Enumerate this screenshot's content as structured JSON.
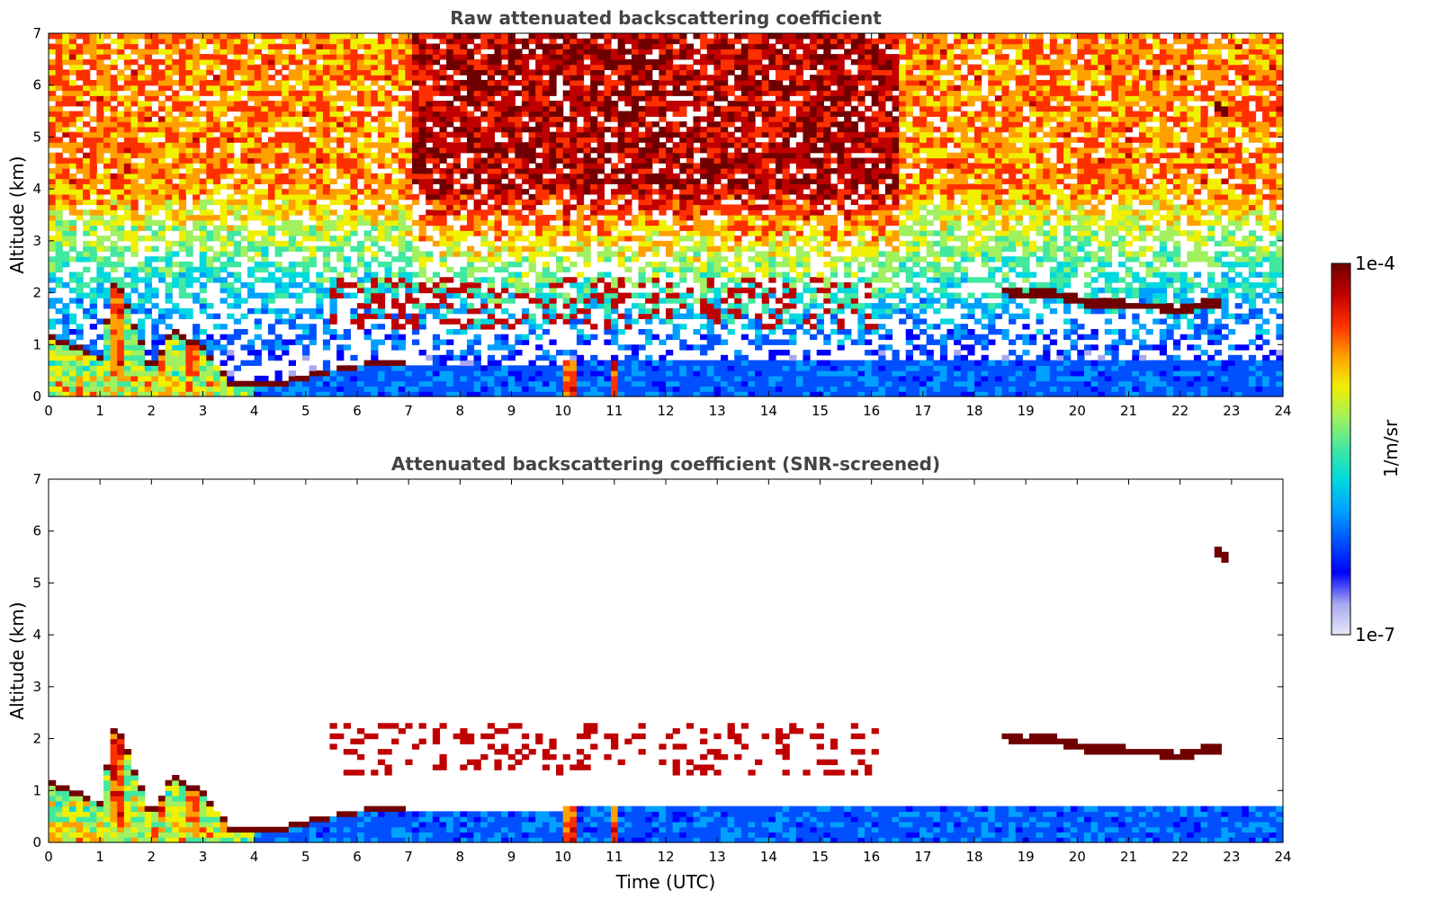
{
  "chart_data": [
    {
      "type": "heatmap",
      "title": "Raw attenuated backscattering coefficient",
      "xlabel": "",
      "ylabel": "Altitude (km)",
      "xlim": [
        0,
        24
      ],
      "ylim": [
        0,
        7
      ],
      "xticks": [
        0,
        1,
        2,
        3,
        4,
        5,
        6,
        7,
        8,
        9,
        10,
        11,
        12,
        13,
        14,
        15,
        16,
        17,
        18,
        19,
        20,
        21,
        22,
        23,
        24
      ],
      "yticks": [
        0,
        1,
        2,
        3,
        4,
        5,
        6,
        7
      ],
      "layers": {
        "background_noise": "dense speckle above ~2 km rising from blue to yellow/red with altitude",
        "boundary_layer": [
          [
            0,
            1.1
          ],
          [
            0.5,
            0.9
          ],
          [
            1,
            0.7
          ],
          [
            1.3,
            2.3
          ],
          [
            1.6,
            1.5
          ],
          [
            2,
            0.45
          ],
          [
            2.4,
            1.2
          ],
          [
            3,
            0.9
          ],
          [
            3.5,
            0.25
          ],
          [
            4.5,
            0.2
          ],
          [
            5,
            0.35
          ],
          [
            6,
            0.55
          ],
          [
            7,
            0.6
          ],
          [
            8,
            0.6
          ],
          [
            12,
            0.7
          ],
          [
            16,
            0.7
          ],
          [
            20,
            0.7
          ],
          [
            24,
            0.7
          ]
        ],
        "cloud_layer": [
          [
            18.6,
            2.05
          ],
          [
            19,
            1.95
          ],
          [
            19.5,
            2.0
          ],
          [
            20,
            1.85
          ],
          [
            20.5,
            1.8
          ],
          [
            21,
            1.75
          ],
          [
            21.5,
            1.75
          ],
          [
            21.9,
            1.65
          ],
          [
            22.3,
            1.75
          ],
          [
            22.8,
            1.8
          ]
        ],
        "cloud_fragments_time_range": [
          5.5,
          16.2
        ],
        "high_cloud": [
          [
            22.7,
            5.6
          ],
          [
            22.9,
            5.5
          ]
        ]
      }
    },
    {
      "type": "heatmap",
      "title": "Attenuated backscattering coefficient (SNR-screened)",
      "xlabel": "Time (UTC)",
      "ylabel": "Altitude (km)",
      "xlim": [
        0,
        24
      ],
      "ylim": [
        0,
        7
      ],
      "xticks": [
        0,
        1,
        2,
        3,
        4,
        5,
        6,
        7,
        8,
        9,
        10,
        11,
        12,
        13,
        14,
        15,
        16,
        17,
        18,
        19,
        20,
        21,
        22,
        23,
        24
      ],
      "yticks": [
        0,
        1,
        2,
        3,
        4,
        5,
        6,
        7
      ],
      "screened_background": "white"
    }
  ],
  "colorbar": {
    "label": "1/m/sr",
    "max_label": "1e-4",
    "min_label": "1e-7",
    "colors": [
      "#e8e8f8",
      "#a8a8f0",
      "#0000ff",
      "#0050ff",
      "#00a0ff",
      "#00d8e0",
      "#40e8a0",
      "#a0f060",
      "#f0f000",
      "#ffa000",
      "#ff3000",
      "#c00000",
      "#700000"
    ]
  }
}
